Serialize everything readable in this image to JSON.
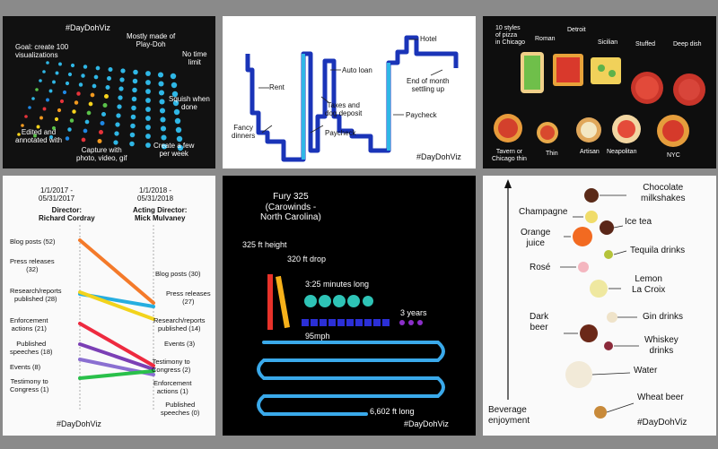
{
  "p1": {
    "hashtag": "#DayDohViz",
    "goal": "Goal: create 100\nvisualizations",
    "made": "Mostly made of\nPlay-Doh",
    "notime": "No time\nlimit",
    "squish": "Squish when\ndone",
    "edited": "Edited and\nannotated with",
    "capture": "Capture with\nphoto, video, gif",
    "create": "Create a few\nper week"
  },
  "p2": {
    "hashtag": "#DayDohViz",
    "rent": "Rent",
    "fancy": "Fancy\ndinners",
    "taxes": "Taxes and\ndog deposit",
    "paycheck1": "Paycheck",
    "autoloan": "Auto loan",
    "paycheck2": "Paycheck",
    "hotel": "Hotel",
    "endmonth": "End of month\nsettling up"
  },
  "p3": {
    "title": "10 styles\nof pizza\nin Chicago",
    "roman": "Roman",
    "detroit": "Detroit",
    "sicilian": "Sicilian",
    "stuffed": "Stuffed",
    "deepdish": "Deep dish",
    "tavern": "Tavern or\nChicago thin",
    "thin": "Thin",
    "artisan": "Artisan",
    "neapolitan": "Neapolitan",
    "nyc": "NYC"
  },
  "p4": {
    "col1": "1/1/2017 -\n05/31/2017",
    "dir1": "Director:\nRichard Cordray",
    "col2": "1/1/2018 -\n05/31/2018",
    "dir2": "Acting Director:\nMick Mulvaney",
    "left": [
      "Blog posts (52)",
      "Press releases\n(32)",
      "Research/reports\npublished (28)",
      "Enforcement\nactions (21)",
      "Published\nspeeches (18)",
      "Events (8)",
      "Testimony to\nCongress (1)"
    ],
    "right": [
      "Blog posts (30)",
      "Press releases\n(27)",
      "Research/reports\npublished (14)",
      "Events (3)",
      "Testimony to\nCongress (2)",
      "Enforcement\nactions (1)",
      "Published\nspeeches (0)"
    ],
    "hashtag": "#DayDohViz",
    "colors": [
      "#f47a2a",
      "#27aee0",
      "#f2d31c",
      "#ee2a3f",
      "#7b3fb5",
      "#8a6fd1",
      "#29c04a"
    ]
  },
  "p5": {
    "title": "Fury 325\n(Carowinds -\nNorth Carolina)",
    "height": "325 ft height",
    "drop": "320 ft drop",
    "minutes": "3:25 minutes long",
    "years": "3 years",
    "mph": "95mph",
    "length": "6,602 ft long",
    "hashtag": "#DayDohViz"
  },
  "p6": {
    "chocolate": "Chocolate\nmilkshakes",
    "champagne": "Champagne",
    "icetea": "Ice tea",
    "orange": "Orange\njuice",
    "tequila": "Tequila drinks",
    "rose": "Rosé",
    "lemon": "Lemon\nLa Croix",
    "darkbeer": "Dark\nbeer",
    "gin": "Gin drinks",
    "whiskey": "Whiskey\ndrinks",
    "water": "Water",
    "wheat": "Wheat beer",
    "axis": "Beverage\nenjoyment",
    "hashtag": "#DayDohViz"
  }
}
